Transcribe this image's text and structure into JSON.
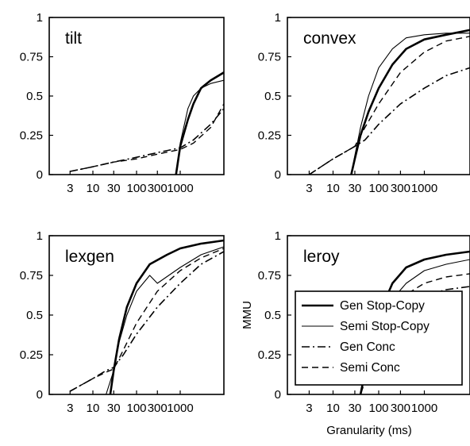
{
  "chart_data": [
    {
      "type": "line",
      "title": "tilt",
      "xscale": "log",
      "xlim": [
        1,
        10000
      ],
      "ylim": [
        0,
        1
      ],
      "xticks": [
        "3",
        "10",
        "30",
        "100",
        "300",
        "1000"
      ],
      "yticks": [
        "0",
        "0.25",
        "0.5",
        "0.75",
        "1"
      ],
      "xlabel": "",
      "ylabel": "",
      "series": [
        {
          "name": "Gen Stop-Copy",
          "x": [
            800,
            1000,
            1500,
            2000,
            3000,
            5000,
            10000
          ],
          "y": [
            0,
            0.18,
            0.35,
            0.45,
            0.55,
            0.6,
            0.65
          ]
        },
        {
          "name": "Semi Stop-Copy",
          "x": [
            800,
            1000,
            1500,
            2000,
            3000,
            5000,
            10000
          ],
          "y": [
            0,
            0.2,
            0.42,
            0.5,
            0.55,
            0.58,
            0.6
          ]
        },
        {
          "name": "Gen Conc",
          "x": [
            3,
            10,
            30,
            100,
            300,
            1000,
            2000,
            5000,
            10000
          ],
          "y": [
            0.02,
            0.05,
            0.08,
            0.11,
            0.14,
            0.17,
            0.22,
            0.32,
            0.42
          ]
        },
        {
          "name": "Semi Conc",
          "x": [
            3,
            10,
            30,
            100,
            300,
            1000,
            2000,
            5000,
            10000
          ],
          "y": [
            0.02,
            0.05,
            0.08,
            0.1,
            0.13,
            0.16,
            0.2,
            0.3,
            0.45
          ]
        }
      ]
    },
    {
      "type": "line",
      "title": "convex",
      "xscale": "log",
      "xlim": [
        1,
        10000
      ],
      "ylim": [
        0,
        1
      ],
      "xticks": [
        "3",
        "10",
        "30",
        "100",
        "300",
        "1000"
      ],
      "yticks": [
        "0",
        "0.25",
        "0.5",
        "0.75",
        "1"
      ],
      "xlabel": "",
      "ylabel": "",
      "series": [
        {
          "name": "Gen Stop-Copy",
          "x": [
            25,
            30,
            40,
            60,
            100,
            200,
            400,
            1000,
            3000,
            10000
          ],
          "y": [
            0,
            0.1,
            0.25,
            0.4,
            0.55,
            0.7,
            0.8,
            0.86,
            0.89,
            0.92
          ]
        },
        {
          "name": "Semi Stop-Copy",
          "x": [
            25,
            30,
            40,
            60,
            100,
            200,
            400,
            1000,
            3000,
            10000
          ],
          "y": [
            0,
            0.12,
            0.3,
            0.5,
            0.68,
            0.8,
            0.87,
            0.89,
            0.9,
            0.9
          ]
        },
        {
          "name": "Gen Conc",
          "x": [
            3,
            10,
            20,
            30,
            50,
            100,
            300,
            1000,
            3000,
            10000
          ],
          "y": [
            0,
            0.1,
            0.15,
            0.18,
            0.22,
            0.32,
            0.45,
            0.55,
            0.63,
            0.68
          ]
        },
        {
          "name": "Semi Conc",
          "x": [
            3,
            10,
            20,
            30,
            50,
            100,
            300,
            1000,
            3000,
            10000
          ],
          "y": [
            0,
            0.1,
            0.15,
            0.18,
            0.3,
            0.45,
            0.65,
            0.78,
            0.85,
            0.88
          ]
        }
      ]
    },
    {
      "type": "line",
      "title": "lexgen",
      "xscale": "log",
      "xlim": [
        1,
        10000
      ],
      "ylim": [
        0,
        1
      ],
      "xticks": [
        "3",
        "10",
        "30",
        "100",
        "300",
        "1000"
      ],
      "yticks": [
        "0",
        "0.25",
        "0.5",
        "0.75",
        "1"
      ],
      "xlabel": "",
      "ylabel": "",
      "series": [
        {
          "name": "Gen Stop-Copy",
          "x": [
            25,
            30,
            40,
            60,
            100,
            200,
            500,
            1000,
            3000,
            10000
          ],
          "y": [
            0,
            0.15,
            0.35,
            0.55,
            0.7,
            0.82,
            0.88,
            0.92,
            0.95,
            0.97
          ]
        },
        {
          "name": "Semi Stop-Copy",
          "x": [
            20,
            30,
            40,
            60,
            100,
            200,
            300,
            1000,
            3000,
            10000
          ],
          "y": [
            0,
            0.15,
            0.33,
            0.5,
            0.65,
            0.75,
            0.7,
            0.8,
            0.88,
            0.93
          ]
        },
        {
          "name": "Gen Conc",
          "x": [
            3,
            10,
            20,
            30,
            50,
            100,
            300,
            1000,
            3000,
            10000
          ],
          "y": [
            0.02,
            0.1,
            0.15,
            0.17,
            0.25,
            0.38,
            0.55,
            0.7,
            0.82,
            0.9
          ]
        },
        {
          "name": "Semi Conc",
          "x": [
            3,
            10,
            20,
            30,
            50,
            100,
            300,
            1000,
            3000,
            10000
          ],
          "y": [
            0.02,
            0.1,
            0.14,
            0.16,
            0.28,
            0.45,
            0.65,
            0.78,
            0.86,
            0.92
          ]
        }
      ]
    },
    {
      "type": "line",
      "title": "leroy",
      "xscale": "log",
      "xlim": [
        1,
        10000
      ],
      "ylim": [
        0,
        1
      ],
      "xticks": [
        "3",
        "10",
        "30",
        "100",
        "300",
        "1000"
      ],
      "yticks": [
        "0",
        "0.25",
        "0.5",
        "0.75",
        "1"
      ],
      "xlabel": "Granularity (ms)",
      "ylabel": "MMU",
      "legend": "center-left",
      "series": [
        {
          "name": "Gen Stop-Copy",
          "x": [
            40,
            60,
            100,
            200,
            400,
            1000,
            3000,
            10000
          ],
          "y": [
            0,
            0.25,
            0.5,
            0.7,
            0.8,
            0.85,
            0.88,
            0.9
          ]
        },
        {
          "name": "Semi Stop-Copy",
          "x": [
            40,
            60,
            100,
            200,
            400,
            1000,
            3000,
            10000
          ],
          "y": [
            0,
            0.2,
            0.4,
            0.6,
            0.7,
            0.78,
            0.82,
            0.85
          ]
        },
        {
          "name": "Gen Conc",
          "x": [
            40,
            60,
            100,
            200,
            400,
            1000,
            3000,
            10000
          ],
          "y": [
            0,
            0.15,
            0.3,
            0.45,
            0.55,
            0.62,
            0.66,
            0.68
          ]
        },
        {
          "name": "Semi Conc",
          "x": [
            40,
            60,
            100,
            200,
            400,
            1000,
            3000,
            10000
          ],
          "y": [
            0,
            0.18,
            0.35,
            0.52,
            0.63,
            0.7,
            0.74,
            0.76
          ]
        }
      ]
    }
  ],
  "legend": {
    "entries": [
      "Gen Stop-Copy",
      "Semi Stop-Copy",
      "Gen Conc",
      "Semi Conc"
    ]
  }
}
